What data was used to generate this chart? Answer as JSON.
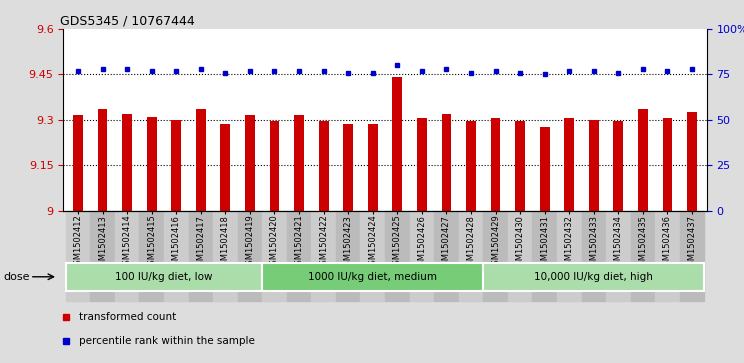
{
  "title": "GDS5345 / 10767444",
  "samples": [
    "GSM1502412",
    "GSM1502413",
    "GSM1502414",
    "GSM1502415",
    "GSM1502416",
    "GSM1502417",
    "GSM1502418",
    "GSM1502419",
    "GSM1502420",
    "GSM1502421",
    "GSM1502422",
    "GSM1502423",
    "GSM1502424",
    "GSM1502425",
    "GSM1502426",
    "GSM1502427",
    "GSM1502428",
    "GSM1502429",
    "GSM1502430",
    "GSM1502431",
    "GSM1502432",
    "GSM1502433",
    "GSM1502434",
    "GSM1502435",
    "GSM1502436",
    "GSM1502437"
  ],
  "bar_values": [
    9.315,
    9.335,
    9.32,
    9.31,
    9.3,
    9.335,
    9.285,
    9.315,
    9.295,
    9.315,
    9.295,
    9.285,
    9.285,
    9.44,
    9.305,
    9.32,
    9.295,
    9.305,
    9.295,
    9.275,
    9.305,
    9.3,
    9.295,
    9.335,
    9.305,
    9.325
  ],
  "percentile_values": [
    77,
    78,
    78,
    77,
    77,
    78,
    76,
    77,
    77,
    77,
    77,
    76,
    76,
    80,
    77,
    78,
    76,
    77,
    76,
    75,
    77,
    77,
    76,
    78,
    77,
    78
  ],
  "bar_color": "#cc0000",
  "dot_color": "#0000cc",
  "ylim_left": [
    9.0,
    9.6
  ],
  "ylim_right": [
    0,
    100
  ],
  "yticks_left": [
    9.0,
    9.15,
    9.3,
    9.45,
    9.6
  ],
  "yticks_right": [
    0,
    25,
    50,
    75,
    100
  ],
  "ytick_labels_left": [
    "9",
    "9.15",
    "9.3",
    "9.45",
    "9.6"
  ],
  "ytick_labels_right": [
    "0",
    "25",
    "50",
    "75",
    "100%"
  ],
  "grid_values": [
    9.15,
    9.3,
    9.45
  ],
  "groups": [
    {
      "label": "100 IU/kg diet, low",
      "start": 0,
      "end": 8
    },
    {
      "label": "1000 IU/kg diet, medium",
      "start": 8,
      "end": 17
    },
    {
      "label": "10,000 IU/kg diet, high",
      "start": 17,
      "end": 26
    }
  ],
  "group_colors": [
    "#aaddaa",
    "#77cc77",
    "#aaddaa"
  ],
  "dose_label": "dose",
  "legend_items": [
    {
      "label": "transformed count",
      "color": "#cc0000"
    },
    {
      "label": "percentile rank within the sample",
      "color": "#0000cc"
    }
  ],
  "background_color": "#dddddd",
  "plot_bg_color": "#ffffff",
  "xtick_bg_colors": [
    "#cccccc",
    "#bbbbbb"
  ]
}
